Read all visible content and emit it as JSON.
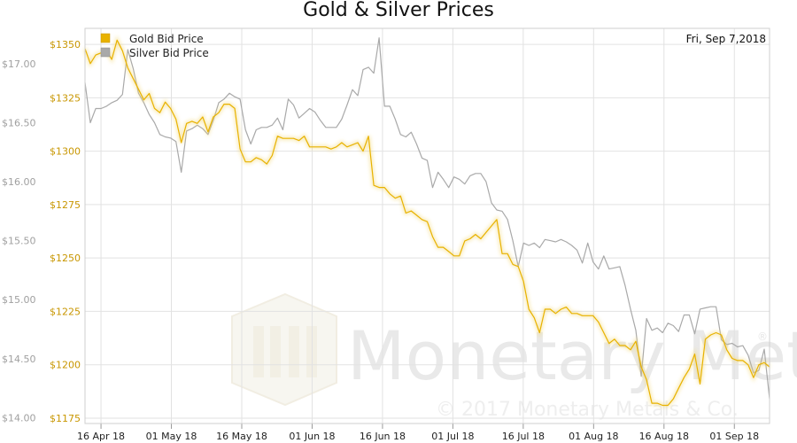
{
  "chart_data": {
    "type": "line",
    "title": "Gold & Silver Prices",
    "date_label": "Fri, Sep 7,2018",
    "colors": {
      "gold": "#e8b200",
      "silver": "#a9a9a9",
      "grid": "#e2e2e2",
      "gold_axis_text": "#c89600",
      "silver_axis_text": "#a0a0a0"
    },
    "grid": true,
    "legend_position": "top-left",
    "x_ticks": [
      {
        "pos": 2.5,
        "label": "16 Apr 18"
      },
      {
        "pos": 13.5,
        "label": "01 May 18"
      },
      {
        "pos": 24.5,
        "label": "16 May 18"
      },
      {
        "pos": 35.5,
        "label": "01 Jun 18"
      },
      {
        "pos": 46.5,
        "label": "16 Jun 18"
      },
      {
        "pos": 57.5,
        "label": "01 Jul 18"
      },
      {
        "pos": 68.5,
        "label": "16 Jul 18"
      },
      {
        "pos": 79.5,
        "label": "01 Aug 18"
      },
      {
        "pos": 90.5,
        "label": "16 Aug 18"
      },
      {
        "pos": 101.5,
        "label": "01 Sep 18"
      }
    ],
    "xlim": [
      0,
      107
    ],
    "gold_axis": {
      "ylim": [
        1172.5,
        1357.5
      ],
      "ticks": [
        "$1175",
        "$1200",
        "$1225",
        "$1250",
        "$1275",
        "$1300",
        "$1325",
        "$1350"
      ],
      "tick_values": [
        1175,
        1200,
        1225,
        1250,
        1275,
        1300,
        1325,
        1350
      ]
    },
    "silver_axis": {
      "ylim": [
        13.95,
        17.3
      ],
      "ticks": [
        "$14.00",
        "$14.50",
        "$15.00",
        "$15.50",
        "$16.00",
        "$16.50",
        "$17.00"
      ],
      "tick_values": [
        14.0,
        14.5,
        15.0,
        15.5,
        16.0,
        16.5,
        17.0
      ]
    },
    "series": [
      {
        "name": "Gold Bid Price",
        "axis": "gold",
        "values": [
          1348,
          1341,
          1345,
          1346,
          1347,
          1343,
          1352,
          1347,
          1339,
          1334,
          1329,
          1324,
          1327,
          1320,
          1318,
          1323,
          1320,
          1315,
          1304,
          1313,
          1314,
          1313,
          1316,
          1309,
          1316,
          1318,
          1322,
          1322,
          1320,
          1301,
          1295,
          1295,
          1297,
          1296,
          1294,
          1298,
          1307,
          1306,
          1306,
          1306,
          1305,
          1307,
          1302,
          1302,
          1302,
          1302,
          1301,
          1302,
          1304,
          1302,
          1303,
          1304,
          1300,
          1307,
          1284,
          1283,
          1283,
          1280,
          1278,
          1279,
          1271,
          1272,
          1270,
          1268,
          1267,
          1260,
          1255,
          1255,
          1253,
          1251,
          1251,
          1258,
          1259,
          1261,
          1259,
          1262,
          1265,
          1268,
          1252,
          1252,
          1247,
          1246,
          1239,
          1226,
          1222,
          1215,
          1226,
          1226,
          1224,
          1226,
          1227,
          1224,
          1224,
          1223,
          1223,
          1223,
          1220,
          1215,
          1210,
          1212,
          1209,
          1209,
          1207,
          1211,
          1199,
          1193,
          1182,
          1182,
          1181,
          1181,
          1184,
          1189,
          1194,
          1198,
          1205,
          1191,
          1212,
          1214,
          1215,
          1214,
          1207,
          1203,
          1202,
          1202,
          1200,
          1194,
          1200,
          1201,
          1199
        ]
      },
      {
        "name": "Silver Bid Price",
        "axis": "silver",
        "values": [
          16.84,
          16.5,
          16.62,
          16.62,
          16.64,
          16.67,
          16.69,
          16.74,
          17.12,
          16.96,
          16.75,
          16.67,
          16.57,
          16.5,
          16.4,
          16.38,
          16.37,
          16.34,
          16.08,
          16.43,
          16.45,
          16.48,
          16.45,
          16.4,
          16.52,
          16.67,
          16.7,
          16.75,
          16.72,
          16.7,
          16.44,
          16.32,
          16.44,
          16.46,
          16.46,
          16.48,
          16.54,
          16.44,
          16.7,
          16.65,
          16.54,
          16.58,
          16.62,
          16.59,
          16.52,
          16.46,
          16.46,
          16.46,
          16.53,
          16.65,
          16.78,
          16.73,
          16.95,
          16.97,
          16.92,
          17.22,
          16.64,
          16.64,
          16.53,
          16.4,
          16.38,
          16.42,
          16.32,
          16.2,
          16.18,
          15.95,
          16.08,
          16.02,
          15.95,
          16.04,
          16.02,
          15.98,
          16.05,
          16.07,
          16.07,
          16.0,
          15.82,
          15.76,
          15.75,
          15.68,
          15.5,
          15.28,
          15.48,
          15.46,
          15.48,
          15.44,
          15.51,
          15.5,
          15.49,
          15.51,
          15.49,
          15.46,
          15.42,
          15.31,
          15.48,
          15.32,
          15.26,
          15.37,
          15.26,
          15.27,
          15.28,
          15.12,
          14.92,
          14.74,
          14.35,
          14.84,
          14.74,
          14.76,
          14.72,
          14.8,
          14.78,
          14.73,
          14.87,
          14.87,
          14.71,
          14.92,
          14.93,
          14.94,
          14.94,
          14.66,
          14.62,
          14.63,
          14.6,
          14.61,
          14.53,
          14.38,
          14.4,
          14.58,
          14.16
        ]
      }
    ]
  },
  "legend": {
    "gold_label": "Gold Bid Price",
    "silver_label": "Silver Bid Price"
  },
  "watermark": {
    "brand": "Monetary Metals",
    "registered": "®",
    "copyright": "© 2017 Monetary Metals & Co."
  }
}
